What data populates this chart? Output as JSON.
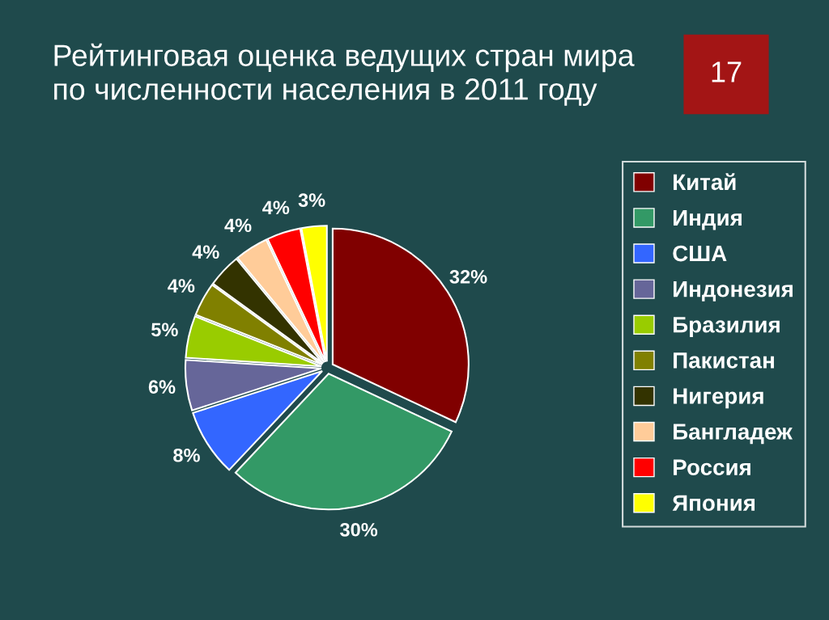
{
  "chart_data": {
    "type": "pie",
    "title": "Рейтинговая оценка ведущих стран мира по численности населения в 2011 году",
    "categories": [
      "Китай",
      "Индия",
      "США",
      "Индонезия",
      "Бразилия",
      "Пакистан",
      "Нигерия",
      "Бангладеж",
      "Россия",
      "Япония"
    ],
    "values": [
      32,
      30,
      8,
      6,
      5,
      4,
      4,
      4,
      4,
      3
    ],
    "colors": [
      "#800000",
      "#339966",
      "#3366ff",
      "#666699",
      "#99cc00",
      "#808000",
      "#333300",
      "#ffcc99",
      "#ff0000",
      "#ffff00"
    ],
    "value_labels": [
      "32%",
      "30%",
      "8%",
      "6%",
      "5%",
      "4%",
      "4%",
      "4%",
      "4%",
      "3%"
    ],
    "legend": "right",
    "annotations": [
      "17"
    ]
  }
}
